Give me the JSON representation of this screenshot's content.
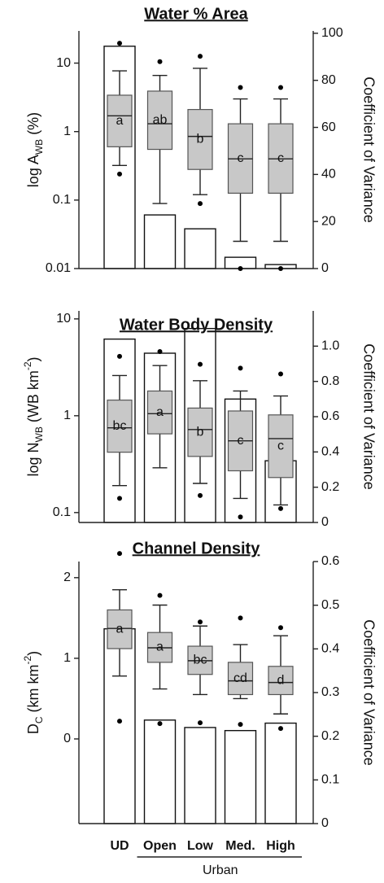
{
  "chart_data": [
    {
      "type": "box",
      "title": "Water % Area",
      "ylabel": [
        {
          "text": "log  A"
        },
        {
          "text": "WB",
          "shift": "sub"
        },
        {
          "text": " (%)"
        }
      ],
      "y2label": "Coefficient of Variance",
      "log_y": true,
      "ylim": [
        0.01,
        29.5
      ],
      "yticks": [
        0.01,
        0.1,
        1,
        10
      ],
      "y2lim": [
        0,
        101
      ],
      "y2ticks": [
        0,
        20,
        40,
        60,
        80,
        100
      ],
      "boxes": {
        "color": "#c8c8c8",
        "whisker_low": [
          0.32,
          0.089,
          0.12,
          0.025,
          0.025
        ],
        "q1": [
          0.6,
          0.55,
          0.28,
          0.126,
          0.126
        ],
        "median": [
          1.7,
          1.3,
          0.85,
          0.4,
          0.4
        ],
        "q3": [
          3.4,
          3.9,
          2.1,
          1.3,
          1.3
        ],
        "whisker_high": [
          7.7,
          6.6,
          8.4,
          3.0,
          3.0
        ],
        "outliers": [
          [
            0.24,
            19.5
          ],
          [
            10.5
          ],
          [
            0.089,
            12.6
          ],
          [
            0.01,
            4.4
          ],
          [
            0.01,
            4.4
          ]
        ],
        "labels": [
          "a",
          "ab",
          "b",
          "c",
          "c"
        ]
      },
      "bars": {
        "axis": "y2",
        "color": "#ffffff",
        "values": [
          94.5,
          22.8,
          16.9,
          4.8,
          1.7
        ]
      }
    },
    {
      "type": "box",
      "title": "Water Body Density",
      "ylabel": [
        {
          "text": "log N"
        },
        {
          "text": "WB",
          "shift": "sub"
        },
        {
          "text": " (WB km"
        },
        {
          "text": "-2",
          "shift": "super"
        },
        {
          "text": ")"
        }
      ],
      "y2label": "Coefficient of Variance",
      "log_y": true,
      "ylim": [
        0.079,
        12.1
      ],
      "yticks": [
        0.1,
        1,
        10
      ],
      "y2lim": [
        0,
        1.2
      ],
      "y2ticks": [
        0,
        0.2,
        0.4,
        0.6,
        0.8,
        {
          "value": 1,
          "label": "1.0"
        }
      ],
      "boxes": {
        "color": "#c8c8c8",
        "whisker_low": [
          0.19,
          0.29,
          0.2,
          0.14,
          0.12
        ],
        "q1": [
          0.42,
          0.65,
          0.38,
          0.27,
          0.23
        ],
        "median": [
          0.75,
          1.05,
          0.72,
          0.55,
          0.58
        ],
        "q3": [
          1.45,
          1.8,
          1.2,
          1.12,
          1.02
        ],
        "whisker_high": [
          2.6,
          3.3,
          2.3,
          1.8,
          1.6
        ],
        "outliers": [
          [
            0.14,
            4.1
          ],
          [
            4.6
          ],
          [
            0.15,
            3.4
          ],
          [
            0.09,
            3.1
          ],
          [
            0.11,
            2.7
          ]
        ],
        "labels": [
          "bc",
          "a",
          "b",
          "c",
          "c"
        ]
      },
      "bars": {
        "axis": "y2",
        "color": "#ffffff",
        "values": [
          1.04,
          0.96,
          1.1,
          0.7,
          0.35
        ]
      }
    },
    {
      "type": "box",
      "title": "Channel Density",
      "ylabel": [
        {
          "text": "D"
        },
        {
          "text": "C",
          "shift": "sub"
        },
        {
          "text": " (km km"
        },
        {
          "text": "-2",
          "shift": "super"
        },
        {
          "text": ")"
        }
      ],
      "y2label": "Coefficient of Variance",
      "log_y": false,
      "ylim": [
        -1.05,
        2.2
      ],
      "yticks": [
        0,
        1,
        2
      ],
      "y2lim": [
        0,
        0.6
      ],
      "y2ticks": [
        0,
        0.1,
        0.2,
        0.3,
        0.4,
        0.5,
        0.6
      ],
      "boxes": {
        "color": "#c8c8c8",
        "whisker_low": [
          0.78,
          0.62,
          0.55,
          0.5,
          0.31
        ],
        "q1": [
          1.12,
          0.95,
          0.8,
          0.55,
          0.55
        ],
        "median": [
          1.37,
          1.13,
          0.97,
          0.72,
          0.7
        ],
        "q3": [
          1.6,
          1.32,
          1.15,
          0.95,
          0.9
        ],
        "whisker_high": [
          1.85,
          1.66,
          1.4,
          1.17,
          1.28
        ],
        "outliers": [
          [
            0.22,
            2.3
          ],
          [
            0.19,
            1.78
          ],
          [
            0.2,
            1.45
          ],
          [
            0.18,
            1.5
          ],
          [
            0.13,
            1.38
          ]
        ],
        "labels": [
          "a",
          "a",
          "bc",
          "cd",
          "d"
        ]
      },
      "bars": {
        "axis": "y2",
        "color": "#ffffff",
        "values": [
          0.446,
          0.237,
          0.22,
          0.213,
          0.23
        ]
      }
    }
  ],
  "x_axis": {
    "categories": [
      "UD",
      "Open",
      "Low",
      "Med.",
      "High"
    ],
    "group_label": "Urban"
  }
}
